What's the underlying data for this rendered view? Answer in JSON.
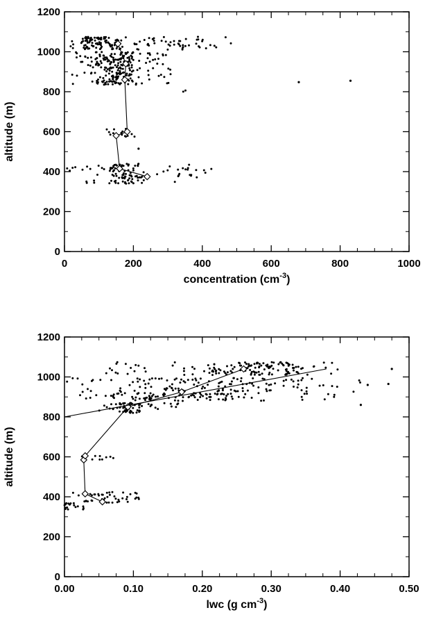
{
  "chart_data": [
    {
      "type": "scatter",
      "xlabel": "concentration (cm",
      "xlabel_sup": "-3",
      "xlabel_end": ")",
      "ylabel": "altitude (m)",
      "xlim": [
        0,
        1000
      ],
      "ylim": [
        0,
        1200
      ],
      "x_ticks": [
        "0",
        "200",
        "400",
        "600",
        "800",
        "1000"
      ],
      "y_ticks": [
        "0",
        "200",
        "400",
        "600",
        "800",
        "1000",
        "1200"
      ],
      "grid": false,
      "series": [
        {
          "type": "line-with-diamonds",
          "points": [
            [
              155,
              1040
            ],
            [
              178,
              940
            ],
            [
              175,
              860
            ],
            [
              182,
              600
            ],
            [
              150,
              580
            ],
            [
              160,
              415
            ],
            [
              240,
              375
            ]
          ]
        }
      ],
      "scatter_clusters": [
        {
          "y": [
            1010,
            1075
          ],
          "x": [
            10,
            485
          ],
          "n": 150,
          "dense_x": [
            50,
            170
          ]
        },
        {
          "y": [
            930,
            1000
          ],
          "x": [
            30,
            315
          ],
          "n": 120,
          "dense_x": [
            90,
            200
          ]
        },
        {
          "y": [
            835,
            925
          ],
          "x": [
            20,
            320
          ],
          "n": 120,
          "dense_x": [
            90,
            200
          ]
        },
        {
          "y": [
            800,
            810
          ],
          "x": [
            335,
            365
          ],
          "n": 2
        },
        {
          "y": [
            575,
            615
          ],
          "x": [
            115,
            215
          ],
          "n": 14
        },
        {
          "y": [
            340,
            440
          ],
          "x": [
            5,
            440
          ],
          "n": 120,
          "dense_x": [
            130,
            230
          ]
        }
      ],
      "outliers": [
        [
          680,
          848
        ],
        [
          830,
          855
        ],
        [
          215,
          515
        ]
      ]
    },
    {
      "type": "scatter",
      "xlabel": "lwc (g cm",
      "xlabel_sup": "-3",
      "xlabel_end": ")",
      "ylabel": "altitude (m)",
      "xlim": [
        0,
        0.5
      ],
      "ylim": [
        0,
        1200
      ],
      "x_ticks": [
        "0.00",
        "0.10",
        "0.20",
        "0.30",
        "0.40",
        "0.50"
      ],
      "y_ticks": [
        "0",
        "200",
        "400",
        "600",
        "800",
        "1000",
        "1200"
      ],
      "grid": false,
      "series": [
        {
          "type": "line-with-diamonds",
          "points": [
            [
              0.055,
              375
            ],
            [
              0.03,
              415
            ],
            [
              0.028,
              585
            ],
            [
              0.03,
              605
            ],
            [
              0.092,
              850
            ],
            [
              0.17,
              925
            ],
            [
              0.26,
              1040
            ]
          ]
        },
        {
          "type": "fit-line",
          "points": [
            [
              0.0,
              800
            ],
            [
              0.38,
              1040
            ]
          ]
        }
      ],
      "scatter_clusters": [
        {
          "y": [
            1010,
            1075
          ],
          "x": [
            0.06,
            0.4
          ],
          "n": 150,
          "dense_x": [
            0.2,
            0.34
          ]
        },
        {
          "y": [
            925,
            995
          ],
          "x": [
            0.0,
            0.45
          ],
          "n": 130,
          "dense_x": [
            0.1,
            0.3
          ]
        },
        {
          "y": [
            880,
            920
          ],
          "x": [
            0.01,
            0.4
          ],
          "n": 100,
          "dense_x": [
            0.05,
            0.25
          ]
        },
        {
          "y": [
            820,
            870
          ],
          "x": [
            0.05,
            0.17
          ],
          "n": 70,
          "dense_x": [
            0.07,
            0.11
          ]
        },
        {
          "y": [
            585,
            610
          ],
          "x": [
            0.02,
            0.08
          ],
          "n": 12
        },
        {
          "y": [
            370,
            425
          ],
          "x": [
            0.01,
            0.11
          ],
          "n": 45
        },
        {
          "y": [
            335,
            370
          ],
          "x": [
            0.0,
            0.03
          ],
          "n": 20
        }
      ],
      "outliers": [
        [
          0.475,
          1040
        ],
        [
          0.44,
          960
        ],
        [
          0.43,
          860
        ],
        [
          0.47,
          965
        ]
      ]
    }
  ]
}
